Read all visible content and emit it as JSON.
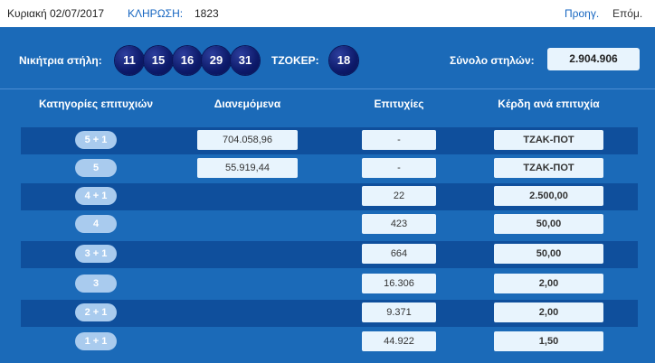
{
  "header": {
    "date": "Κυριακή 02/07/2017",
    "draw_label": "ΚΛΗΡΩΣΗ:",
    "draw_number": "1823",
    "prev_label": "Προηγ.",
    "next_label": "Επόμ."
  },
  "winning": {
    "label": "Νικήτρια στήλη:",
    "numbers": [
      "11",
      "15",
      "16",
      "29",
      "31"
    ],
    "joker_label": "ΤΖΟΚΕΡ:",
    "joker": "18",
    "total_label": "Σύνολο στηλών:",
    "total": "2.904.906"
  },
  "table": {
    "headers": [
      "Κατηγορίες επιτυχιών",
      "Διανεμόμενα",
      "Επιτυχίες",
      "Κέρδη ανά επιτυχία"
    ],
    "rows": [
      {
        "category": "5 + 1",
        "distributed": "704.058,96",
        "winners": "-",
        "prize": "ΤΖΑΚ-ΠΟΤ"
      },
      {
        "category": "5",
        "distributed": "55.919,44",
        "winners": "-",
        "prize": "ΤΖΑΚ-ΠΟΤ"
      },
      {
        "category": "4 + 1",
        "distributed": "",
        "winners": "22",
        "prize": "2.500,00"
      },
      {
        "category": "4",
        "distributed": "",
        "winners": "423",
        "prize": "50,00"
      },
      {
        "category": "3 + 1",
        "distributed": "",
        "winners": "664",
        "prize": "50,00"
      },
      {
        "category": "3",
        "distributed": "",
        "winners": "16.306",
        "prize": "2,00"
      },
      {
        "category": "2 + 1",
        "distributed": "",
        "winners": "9.371",
        "prize": "2,00"
      },
      {
        "category": "1 + 1",
        "distributed": "",
        "winners": "44.922",
        "prize": "1,50"
      }
    ]
  },
  "colors": {
    "panel": "#1b6ab8",
    "row_dark": "#0f4f9c",
    "ball": "#0d1a6a",
    "pill": "#a9cbee",
    "cell": "#e8f4fd",
    "link": "#1565c0"
  }
}
